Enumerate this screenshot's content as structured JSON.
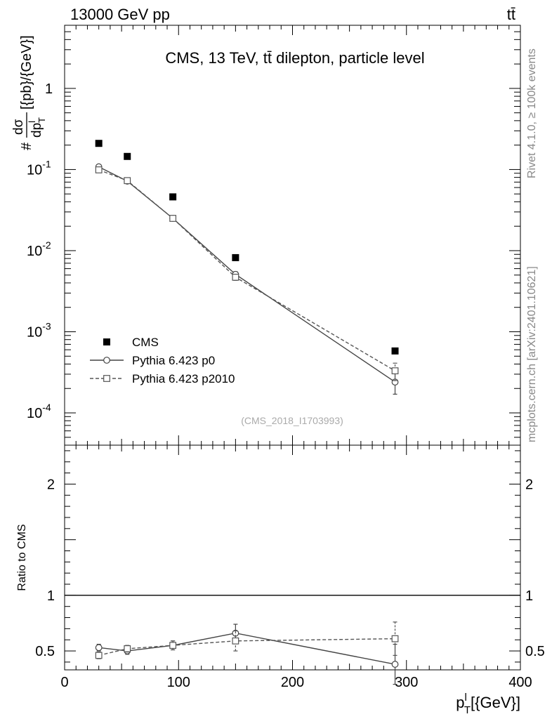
{
  "header": {
    "energy_label": "13000 GeV pp",
    "process_label": "tt̄"
  },
  "side_labels": {
    "rivet": "Rivet 4.1.0, ≥ 100k events",
    "mcplots": "mcplots.cern.ch [arXiv:2401.10621]"
  },
  "chart_data": [
    {
      "type": "scatter",
      "title": "CMS, 13 TeV, tt̄ dilepton, particle level",
      "watermark": "(CMS_2018_I1703993)",
      "ylabel": "#dσ/dp_T^l [{pb}/{GeV}]",
      "yscale": "log",
      "xlim": [
        0,
        400
      ],
      "ylim": [
        4e-05,
        6
      ],
      "x_ticks": [
        0,
        100,
        200,
        300,
        400
      ],
      "y_ticks": [
        {
          "value": 0.0001,
          "base": "10",
          "exp": "-4"
        },
        {
          "value": 0.001,
          "base": "10",
          "exp": "-3"
        },
        {
          "value": 0.01,
          "base": "10",
          "exp": "-2"
        },
        {
          "value": 0.1,
          "base": "10",
          "exp": "-1"
        },
        {
          "value": 1,
          "base": "1",
          "exp": ""
        }
      ],
      "legend_position": "bottom-left",
      "series": [
        {
          "name": "CMS",
          "style": "data",
          "color": "#000000",
          "x": [
            30,
            55,
            95,
            150,
            290
          ],
          "y": [
            0.21,
            0.145,
            0.046,
            0.0082,
            0.00058
          ]
        },
        {
          "name": "Pythia 6.423 p0",
          "style": "solid-circle",
          "color": "#444444",
          "x": [
            30,
            55,
            95,
            150,
            290
          ],
          "y": [
            0.108,
            0.072,
            0.025,
            0.0051,
            0.00024
          ],
          "err": [
            0.005,
            0.003,
            0.001,
            0.0004,
            7e-05
          ]
        },
        {
          "name": "Pythia 6.423 p2010",
          "style": "dashed-square",
          "color": "#555555",
          "x": [
            30,
            55,
            95,
            150,
            290
          ],
          "y": [
            0.099,
            0.073,
            0.025,
            0.0047,
            0.00033
          ],
          "err": [
            0.004,
            0.003,
            0.001,
            0.0004,
            8e-05
          ]
        }
      ]
    },
    {
      "type": "line",
      "ylabel": "Ratio to CMS",
      "xlabel": "p_T^l [{GeV}]",
      "xlim": [
        0,
        400
      ],
      "ylim": [
        0.33,
        2.35
      ],
      "x_ticks": [
        0,
        100,
        200,
        300,
        400
      ],
      "y_ticks": [
        0.5,
        1,
        2
      ],
      "reference_line": 1,
      "series": [
        {
          "name": "Pythia 6.423 p0",
          "style": "solid-circle",
          "color": "#444444",
          "x": [
            30,
            55,
            95,
            150,
            290
          ],
          "y": [
            0.53,
            0.5,
            0.55,
            0.66,
            0.38
          ],
          "err": [
            0.03,
            0.03,
            0.04,
            0.08,
            0.18
          ]
        },
        {
          "name": "Pythia 6.423 p2010",
          "style": "dashed-square",
          "color": "#555555",
          "x": [
            30,
            55,
            95,
            150,
            290
          ],
          "y": [
            0.46,
            0.52,
            0.55,
            0.59,
            0.61
          ],
          "err": [
            0.03,
            0.03,
            0.04,
            0.09,
            0.15
          ]
        }
      ]
    }
  ]
}
